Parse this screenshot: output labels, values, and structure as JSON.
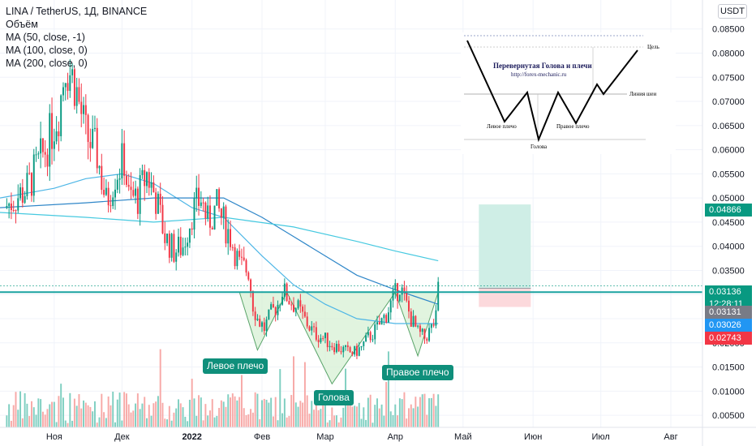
{
  "header": {
    "title": "LINA / TetherUS, 1Д, BINANCE",
    "indicators": [
      "Объём",
      "MA (50, close, -1)",
      "MA (100, close, 0)",
      "MA (200, close, 0)"
    ],
    "currency": "USDT"
  },
  "annotations": {
    "left_shoulder": "Левое плечо",
    "head": "Голова",
    "right_shoulder": "Правое плечо"
  },
  "inset": {
    "title": "Перевернутая Голова и плечи",
    "url": "http://forex-mechanic.ru",
    "target": "Цель",
    "neckline": "Линия шеи",
    "left_shoulder": "Левое плечо",
    "right_shoulder": "Правое плечо",
    "head": "Голова"
  },
  "price_tags": [
    {
      "label": "0.04866",
      "color": "#089981"
    },
    {
      "label": "0.03136",
      "color": "#089981"
    },
    {
      "label": "12:28:11",
      "color": "#089981"
    },
    {
      "label": "0.03131",
      "color": "#787b86"
    },
    {
      "label": "0.03026",
      "color": "#2196f3"
    },
    {
      "label": "0.02743",
      "color": "#f23645"
    }
  ],
  "colors": {
    "up": "#089981",
    "down": "#f23645",
    "up_volume": "#7fcfc1",
    "down_volume": "#f7a9a7",
    "ma50": "#4db6e6",
    "ma100": "#2e86c8",
    "ma200": "#46c9e0",
    "neckline": "#1aa3a0",
    "pattern_fill": "#d7f0d4",
    "target_zone": "#cfeee6",
    "stop_zone": "#fcd9dc"
  },
  "chart_data": {
    "type": "candlestick",
    "symbol": "LINA / TetherUS",
    "timeframe": "1Д",
    "exchange": "BINANCE",
    "y_axis": {
      "ticks": [
        0.085,
        0.08,
        0.075,
        0.07,
        0.065,
        0.06,
        0.055,
        0.05,
        0.045,
        0.04,
        0.035,
        0.03,
        0.025,
        0.02,
        0.015,
        0.01,
        0.005
      ],
      "tick_labels": [
        "0.08500",
        "0.08000",
        "0.07500",
        "0.07000",
        "0.06500",
        "0.06000",
        "0.05500",
        "0.05000",
        "0.04500",
        "0.04000",
        "0.03500",
        "0.03000",
        "0.02500",
        "0.02000",
        "0.01500",
        "0.01000",
        "0.00500"
      ],
      "range": [
        0.0025,
        0.091
      ]
    },
    "x_axis": {
      "labels": [
        "Ноя",
        "Дек",
        "2022",
        "Фев",
        "Мар",
        "Апр",
        "Май",
        "Июн",
        "Июл",
        "Авг"
      ],
      "bold_label": "2022",
      "dates": [
        "2021-11-01",
        "2021-12-01",
        "2022-01-01",
        "2022-02-01",
        "2022-03-01",
        "2022-04-01",
        "2022-05-01",
        "2022-06-01",
        "2022-07-01",
        "2022-08-01"
      ],
      "range": [
        "2021-10-08",
        "2022-08-15"
      ]
    },
    "price_closes": [
      [
        "2021-10-10",
        0.048
      ],
      [
        "2021-10-20",
        0.052
      ],
      [
        "2021-10-28",
        0.06
      ],
      [
        "2021-11-03",
        0.068
      ],
      [
        "2021-11-06",
        0.078
      ],
      [
        "2021-11-10",
        0.074
      ],
      [
        "2021-11-15",
        0.063
      ],
      [
        "2021-11-20",
        0.059
      ],
      [
        "2021-11-24",
        0.049
      ],
      [
        "2021-11-28",
        0.055
      ],
      [
        "2021-12-02",
        0.058
      ],
      [
        "2021-12-04",
        0.05
      ],
      [
        "2021-12-08",
        0.05
      ],
      [
        "2021-12-12",
        0.055
      ],
      [
        "2021-12-16",
        0.05
      ],
      [
        "2021-12-20",
        0.042
      ],
      [
        "2021-12-24",
        0.039
      ],
      [
        "2021-12-28",
        0.04
      ],
      [
        "2022-01-01",
        0.047
      ],
      [
        "2022-01-05",
        0.05
      ],
      [
        "2022-01-08",
        0.045
      ],
      [
        "2022-01-12",
        0.048
      ],
      [
        "2022-01-15",
        0.045
      ],
      [
        "2022-01-18",
        0.042
      ],
      [
        "2022-01-20",
        0.039
      ],
      [
        "2022-01-22",
        0.036
      ],
      [
        "2022-01-26",
        0.035
      ],
      [
        "2022-01-28",
        0.028
      ],
      [
        "2022-01-30",
        0.025
      ],
      [
        "2022-02-02",
        0.023
      ],
      [
        "2022-02-05",
        0.026
      ],
      [
        "2022-02-08",
        0.028
      ],
      [
        "2022-02-10",
        0.031
      ],
      [
        "2022-02-13",
        0.029
      ],
      [
        "2022-02-17",
        0.027
      ],
      [
        "2022-02-21",
        0.024
      ],
      [
        "2022-02-24",
        0.022
      ],
      [
        "2022-02-28",
        0.021
      ],
      [
        "2022-03-03",
        0.02
      ],
      [
        "2022-03-07",
        0.019
      ],
      [
        "2022-03-11",
        0.018
      ],
      [
        "2022-03-14",
        0.018
      ],
      [
        "2022-03-17",
        0.019
      ],
      [
        "2022-03-20",
        0.021
      ],
      [
        "2022-03-24",
        0.023
      ],
      [
        "2022-03-28",
        0.026
      ],
      [
        "2022-04-01",
        0.03
      ],
      [
        "2022-04-03",
        0.032
      ],
      [
        "2022-04-05",
        0.029
      ],
      [
        "2022-04-08",
        0.025
      ],
      [
        "2022-04-11",
        0.022
      ],
      [
        "2022-04-14",
        0.021
      ],
      [
        "2022-04-17",
        0.023
      ],
      [
        "2022-04-19",
        0.025
      ],
      [
        "2022-04-20",
        0.031
      ]
    ],
    "moving_averages": [
      {
        "name": "MA (50, close, -1)",
        "points": [
          [
            "2021-10-08",
            0.05
          ],
          [
            "2021-11-01",
            0.052
          ],
          [
            "2021-11-15",
            0.054
          ],
          [
            "2021-12-01",
            0.055
          ],
          [
            "2021-12-15",
            0.053
          ],
          [
            "2022-01-01",
            0.048
          ],
          [
            "2022-01-15",
            0.046
          ],
          [
            "2022-02-01",
            0.038
          ],
          [
            "2022-02-15",
            0.032
          ],
          [
            "2022-03-01",
            0.028
          ],
          [
            "2022-03-15",
            0.025
          ],
          [
            "2022-04-01",
            0.024
          ],
          [
            "2022-04-20",
            0.024
          ]
        ]
      },
      {
        "name": "MA (100, close, 0)",
        "points": [
          [
            "2021-10-08",
            0.048
          ],
          [
            "2021-11-15",
            0.049
          ],
          [
            "2021-12-15",
            0.05
          ],
          [
            "2022-01-15",
            0.05
          ],
          [
            "2022-02-01",
            0.046
          ],
          [
            "2022-02-15",
            0.042
          ],
          [
            "2022-03-01",
            0.038
          ],
          [
            "2022-03-15",
            0.034
          ],
          [
            "2022-04-01",
            0.031
          ],
          [
            "2022-04-20",
            0.028
          ]
        ]
      },
      {
        "name": "MA (200, close, 0)",
        "points": [
          [
            "2021-10-08",
            0.047
          ],
          [
            "2021-11-15",
            0.046
          ],
          [
            "2021-12-15",
            0.045
          ],
          [
            "2022-01-15",
            0.046
          ],
          [
            "2022-02-15",
            0.044
          ],
          [
            "2022-03-15",
            0.041
          ],
          [
            "2022-04-01",
            0.039
          ],
          [
            "2022-04-20",
            0.037
          ]
        ]
      }
    ],
    "neckline": 0.0305,
    "pattern": {
      "name": "Inverse head and shoulders",
      "points": [
        [
          "2022-01-22",
          0.0305
        ],
        [
          "2022-01-30",
          0.0185
        ],
        [
          "2022-02-12",
          0.0305
        ],
        [
          "2022-03-04",
          0.0115
        ],
        [
          "2022-04-01",
          0.0305
        ],
        [
          "2022-04-11",
          0.0173
        ],
        [
          "2022-04-20",
          0.0305
        ],
        [
          "2022-05-05",
          0.0305
        ]
      ]
    },
    "position": {
      "entry": 0.03131,
      "target": 0.04866,
      "stop": 0.02743,
      "start": "2022-05-08",
      "end": "2022-05-31"
    }
  }
}
